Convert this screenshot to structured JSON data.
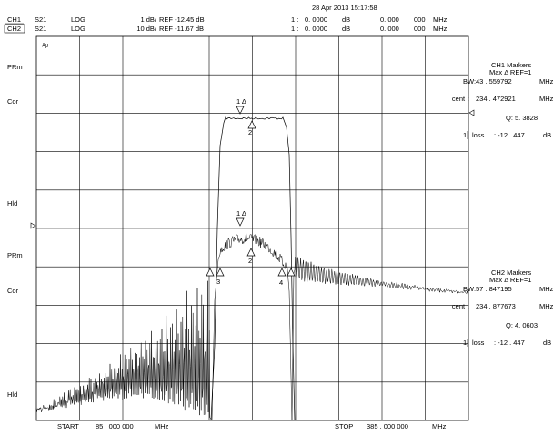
{
  "header": {
    "datetime": "28 Apr 2013 15:17:58"
  },
  "channels": [
    {
      "name": "CH1",
      "param": "S21",
      "format": "LOG",
      "scale": "1 dB/",
      "ref": "REF -12.45 dB",
      "marker": "1 :",
      "mval": "0. 0000",
      "munit": "dB",
      "freq": "0. 000",
      "freq2": "000",
      "funit": "MHz"
    },
    {
      "name": "CH2",
      "param": "S21",
      "format": "LOG",
      "scale": "10 dB/",
      "ref": "REF -11.67 dB",
      "marker": "1 :",
      "mval": "0. 0000",
      "munit": "dB",
      "freq": "0. 000",
      "freq2": "000",
      "funit": "MHz"
    }
  ],
  "side_labels": [
    "PRm",
    "Cor",
    "Hld",
    "PRm",
    "Cor",
    "Hld"
  ],
  "grid_corner": "Aμ",
  "footer": {
    "start": "START",
    "start_value": "85 . 000  000",
    "start_unit": "MHz",
    "stop": "STOP",
    "stop_value": "385 . 000  000",
    "stop_unit": "MHz"
  },
  "panels": [
    {
      "title": "CH1   Markers",
      "sub": "Max     Δ REF=1",
      "bw_label": "BW:",
      "bw": "43 . 559792",
      "bw_unit": "MHz",
      "cent_label": "cent",
      "sep": ":",
      "cent": "234 . 472921",
      "cent_unit": "MHz",
      "q": "Q: 5. 3828",
      "loss_num": "1",
      "loss_label": "loss",
      "loss": ":  -12   . 447",
      "loss_unit": "dB"
    },
    {
      "title": "CH2   Markers",
      "sub": "Max     Δ REF=1",
      "bw_label": "BW:",
      "bw": "57 . 847195",
      "bw_unit": "MHz",
      "cent_label": "cent",
      "sep": ":",
      "cent": "234 . 877673",
      "cent_unit": "MHz",
      "q": "Q: 4. 0603",
      "loss_num": "1",
      "loss_label": "loss",
      "loss": ":  -12   . 447",
      "loss_unit": "dB"
    }
  ],
  "markers": [
    "1 Δ",
    "2",
    "1 Δ",
    "2",
    "3",
    "4"
  ]
}
